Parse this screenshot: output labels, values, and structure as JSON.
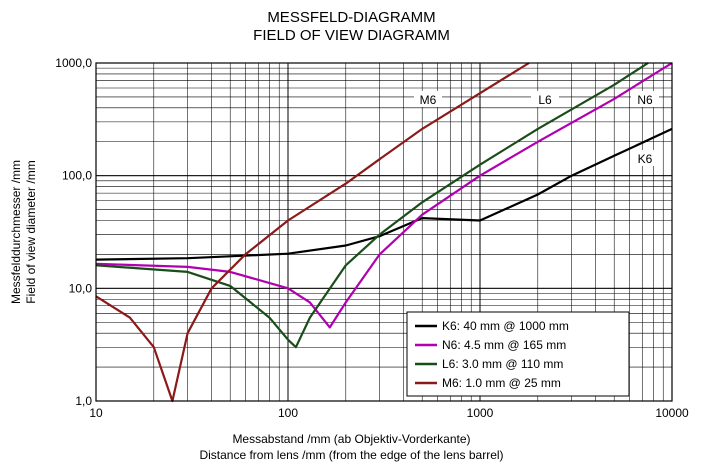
{
  "title": [
    "MESSFELD-DIAGRAMM",
    "FIELD OF VIEW DIAGRAMM"
  ],
  "chart_data": {
    "type": "line",
    "title": "MESSFELD-DIAGRAMM / FIELD OF VIEW DIAGRAMM",
    "xlabel": [
      "Messabstand /mm (ab Objektiv-Vorderkante)",
      "Distance from lens /mm (from the edge of the lens barrel)"
    ],
    "ylabel": [
      "Messfelddurchmesser /mm",
      "Field of view diameter /mm"
    ],
    "xscale": "log",
    "yscale": "log",
    "xlim": [
      10,
      10000
    ],
    "ylim": [
      1,
      1000
    ],
    "xticks": [
      10,
      100,
      1000,
      10000
    ],
    "xtick_labels": [
      "10",
      "100",
      "1000",
      "10000"
    ],
    "yticks": [
      1,
      10,
      100,
      1000
    ],
    "ytick_labels": [
      "1,0",
      "10,0",
      "100,0",
      "1000,0"
    ],
    "grid": true,
    "legend_position": "lower-right",
    "series": [
      {
        "name": "K6: 40 mm @ 1000 mm",
        "label": "K6",
        "color": "#000000",
        "x": [
          10,
          30,
          100,
          200,
          300,
          500,
          1000,
          2000,
          3000,
          5000,
          10000
        ],
        "y": [
          18,
          18.5,
          20.3,
          24,
          29,
          42,
          40,
          68,
          100,
          150,
          260
        ]
      },
      {
        "name": "N6: 4.5 mm @ 165 mm",
        "label": "N6",
        "color": "#b000b0",
        "x": [
          10,
          30,
          50,
          100,
          130,
          165,
          200,
          300,
          500,
          1000,
          2000,
          5000,
          10000
        ],
        "y": [
          16.5,
          15.5,
          14,
          10,
          7.5,
          4.5,
          7.5,
          20,
          45,
          100,
          200,
          480,
          1000
        ]
      },
      {
        "name": "L6:  3.0 mm @ 110 mm",
        "label": "L6",
        "color": "#1a4d1a",
        "x": [
          10,
          30,
          50,
          80,
          100,
          110,
          130,
          200,
          300,
          500,
          1000,
          2000,
          5000,
          7500
        ],
        "y": [
          16,
          14,
          10.5,
          5.5,
          3.5,
          3,
          5.5,
          16,
          30,
          58,
          125,
          260,
          640,
          1000
        ]
      },
      {
        "name": "M6:  1.0 mm @ 25 mm",
        "label": "M6",
        "color": "#8b1a1a",
        "x": [
          10,
          15,
          20,
          25,
          30,
          40,
          60,
          100,
          200,
          300,
          500,
          1000,
          1800
        ],
        "y": [
          8.5,
          5.5,
          3,
          1,
          4,
          10,
          20,
          40,
          85,
          140,
          260,
          540,
          1000
        ]
      }
    ]
  }
}
